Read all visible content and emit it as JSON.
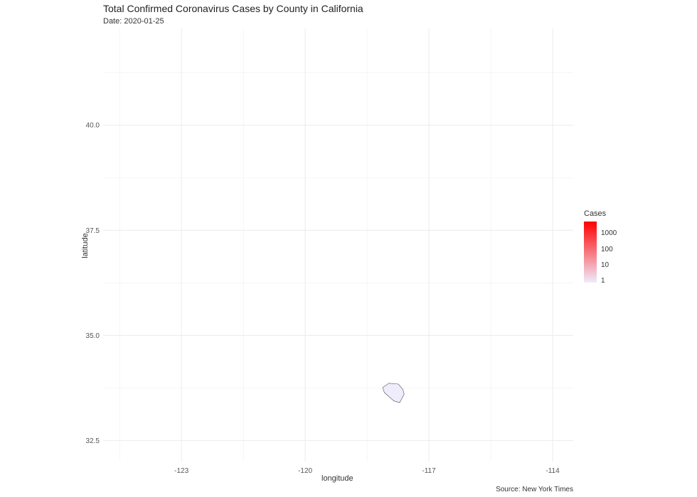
{
  "chart_data": {
    "type": "map",
    "title": "Total Confirmed Coronavirus Cases by County in California",
    "subtitle": "Date: 2020-01-25",
    "xlabel": "longitude",
    "ylabel": "latitude",
    "caption": "Source: New York Times",
    "xlim": [
      -124.9,
      -113.5
    ],
    "ylim": [
      32.0,
      42.3
    ],
    "x_ticks": [
      -123,
      -120,
      -117,
      -114
    ],
    "x_tick_labels": [
      "-123",
      "-120",
      "-117",
      "-114"
    ],
    "y_ticks": [
      32.5,
      35.0,
      37.5,
      40.0
    ],
    "y_tick_labels": [
      "32.5",
      "35.0",
      "37.5",
      "40.0"
    ],
    "grid": true,
    "legend": {
      "title": "Cases",
      "position": "right",
      "scale": "log",
      "labels": [
        "1000",
        "100",
        "10",
        "1"
      ],
      "low_color": "#efecfc",
      "high_color": "#ff0000"
    },
    "regions": [
      {
        "cases": 1,
        "fill": "#efecfc",
        "outline_lonlat": [
          [
            -118.12,
            33.76
          ],
          [
            -117.97,
            33.86
          ],
          [
            -117.74,
            33.84
          ],
          [
            -117.63,
            33.71
          ],
          [
            -117.6,
            33.6
          ],
          [
            -117.71,
            33.4
          ],
          [
            -117.85,
            33.44
          ],
          [
            -118.08,
            33.64
          ]
        ]
      }
    ]
  }
}
